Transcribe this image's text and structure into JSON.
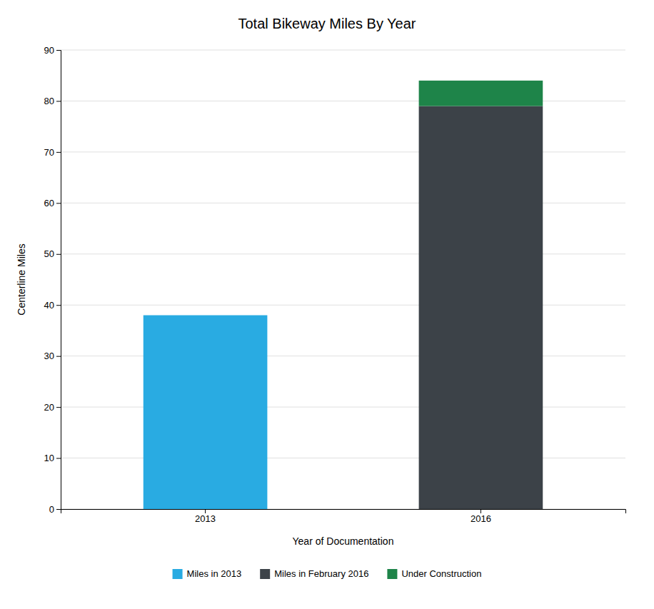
{
  "chart_data": {
    "type": "bar",
    "title": "Total Bikeway Miles By Year",
    "xlabel": "Year of Documentation",
    "ylabel": "Centerline Miles",
    "categories": [
      "2013",
      "2016"
    ],
    "series": [
      {
        "name": "Miles in 2013",
        "color": "#29ABE2",
        "values": [
          38,
          null
        ]
      },
      {
        "name": "Miles in February 2016",
        "color": "#3C4248",
        "values": [
          null,
          79
        ]
      },
      {
        "name": "Under Construction",
        "color": "#1E8449",
        "values": [
          null,
          5
        ]
      }
    ],
    "stacked": true,
    "ylim": [
      0,
      90
    ],
    "yticks": [
      0,
      10,
      20,
      30,
      40,
      50,
      60,
      70,
      80,
      90
    ],
    "grid": true,
    "legend": "bottom"
  }
}
